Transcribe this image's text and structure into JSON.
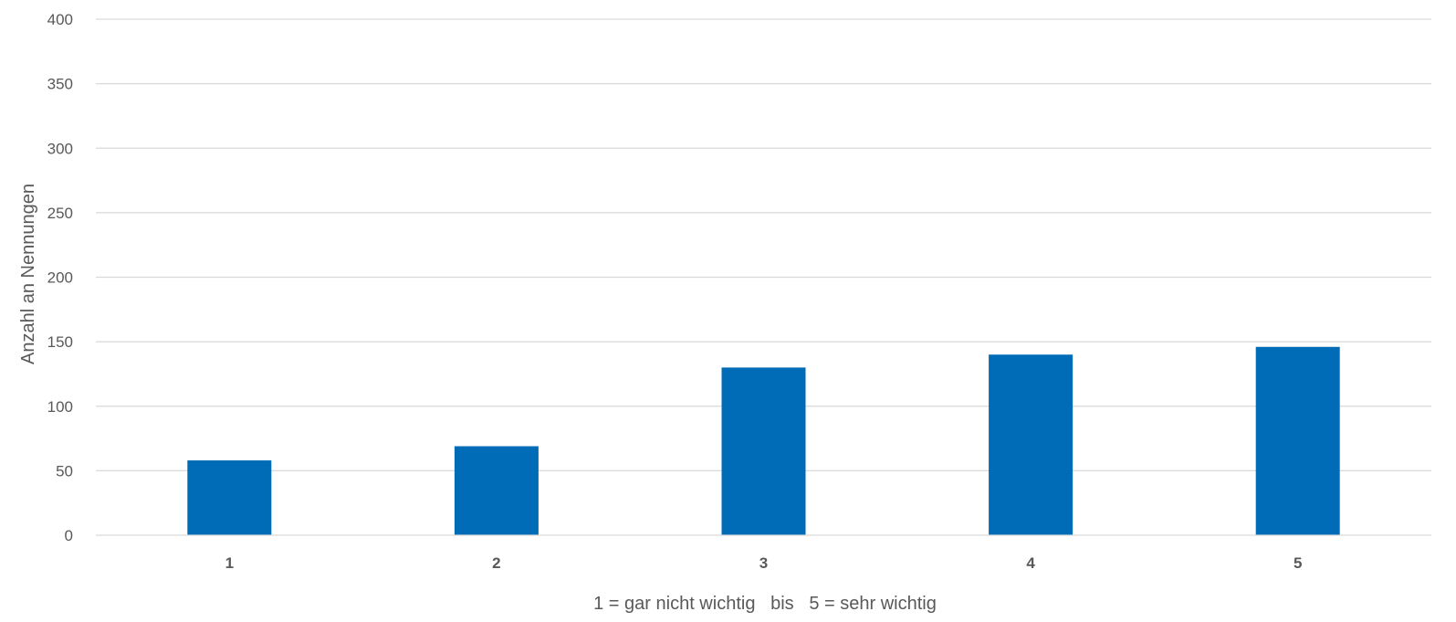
{
  "chart_data": {
    "type": "bar",
    "title": "",
    "xlabel": "1 = gar nicht wichtig   bis   5 = sehr wichtig",
    "ylabel": "Anzahl an Nennungen",
    "categories": [
      "1",
      "2",
      "3",
      "4",
      "5"
    ],
    "values": [
      58,
      69,
      130,
      140,
      146
    ],
    "ylim": [
      0,
      400
    ],
    "yticks": [
      "0",
      "50",
      "100",
      "150",
      "200",
      "250",
      "300",
      "350",
      "400"
    ],
    "grid": true,
    "legend": "none",
    "bar_color": "#006cb7"
  }
}
